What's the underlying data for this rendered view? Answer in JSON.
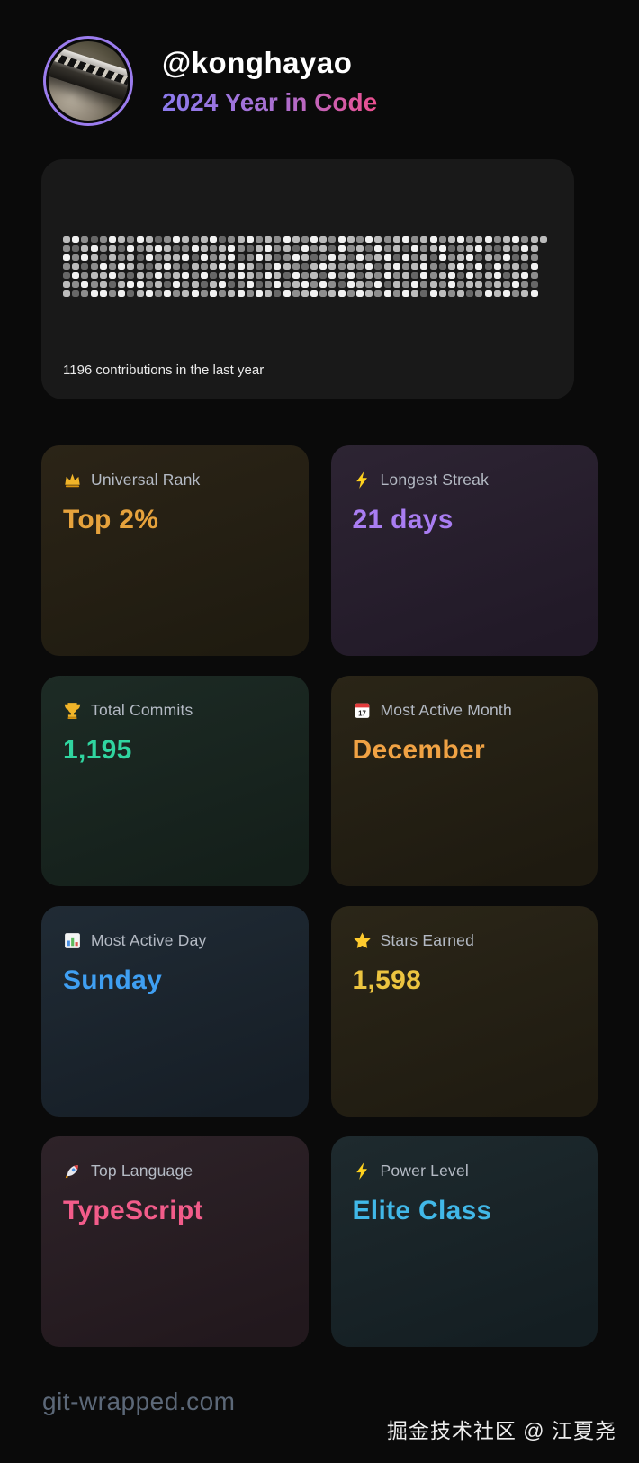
{
  "page": {
    "background": "#0a0a0a"
  },
  "header": {
    "username": "@konghayao",
    "subtitle": "2024 Year in Code",
    "subtitle_gradient": [
      "#8b7aed",
      "#ab6fd0",
      "#ec4f8f"
    ],
    "avatar": {
      "icon": "avatar-harmonica-photo",
      "ring_color": "#9b7cee"
    }
  },
  "contributions": {
    "caption": "1196 contributions in the last year",
    "heatmap": {
      "rows": 7,
      "columns": 53,
      "palette": [
        "#434343",
        "#676767",
        "#8d8d8d",
        "#bcbcbc",
        "#f2f2f2"
      ],
      "weeks": [
        "3242133",
        "4123421",
        "2341242",
        "1432324",
        "2214334",
        "4332412",
        "3124234",
        "2433141",
        "4212343",
        "3341224",
        "1423432",
        "2334214",
        "4132342",
        "3241423",
        "2413234",
        "3342412",
        "4223134",
        "1334242",
        "2442313",
        "3214424",
        "4123342",
        "2341214",
        "3432423",
        "2214341",
        "4323124",
        "3142432",
        "2431243",
        "4213324",
        "3324142",
        "2143423",
        "4432214",
        "3213442",
        "2342134",
        "4124323",
        "3431242",
        "2243414",
        "3314232",
        "4142324",
        "2423143",
        "3234421",
        "4312234",
        "2441323",
        "3123442",
        "4234123",
        "2342431",
        "3414232",
        "4231324",
        "2124433",
        "3342124",
        "4213342",
        "2431423",
        "3324214",
        "3"
      ]
    }
  },
  "stats": {
    "cards": [
      {
        "icon": "crown-icon",
        "label": "Universal Rank",
        "value": "Top 2%",
        "value_color": "#e6a23c",
        "bg_top": "#2b2417",
        "bg_bottom": "#1f1b10"
      },
      {
        "icon": "lightning-icon",
        "label": "Longest Streak",
        "value": "21 days",
        "value_color": "#a97df2",
        "bg_top": "#2d2433",
        "bg_bottom": "#211927"
      },
      {
        "icon": "trophy-icon",
        "label": "Total Commits",
        "value": "1,195",
        "value_color": "#30d5a0",
        "bg_top": "#1d2b25",
        "bg_bottom": "#141f1a"
      },
      {
        "icon": "calendar-icon",
        "label": "Most Active Month",
        "value": "December",
        "value_color": "#f0a244",
        "bg_top": "#2a2517",
        "bg_bottom": "#1e1a10"
      },
      {
        "icon": "bar-chart-icon",
        "label": "Most Active Day",
        "value": "Sunday",
        "value_color": "#3f9ff2",
        "bg_top": "#202b35",
        "bg_bottom": "#161e26"
      },
      {
        "icon": "star-icon",
        "label": "Stars Earned",
        "value": "1,598",
        "value_color": "#ecc440",
        "bg_top": "#2b2618",
        "bg_bottom": "#1f1b11"
      },
      {
        "icon": "rocket-icon",
        "label": "Top Language",
        "value": "TypeScript",
        "value_color": "#f25c8a",
        "bg_top": "#2e2329",
        "bg_bottom": "#22181d"
      },
      {
        "icon": "lightning-icon",
        "label": "Power Level",
        "value": "Elite Class",
        "value_color": "#41b8e8",
        "bg_top": "#1e2a2e",
        "bg_bottom": "#141e22"
      }
    ]
  },
  "footer": {
    "site": "git-wrapped.com",
    "watermark": "掘金技术社区 @ 江夏尧"
  }
}
